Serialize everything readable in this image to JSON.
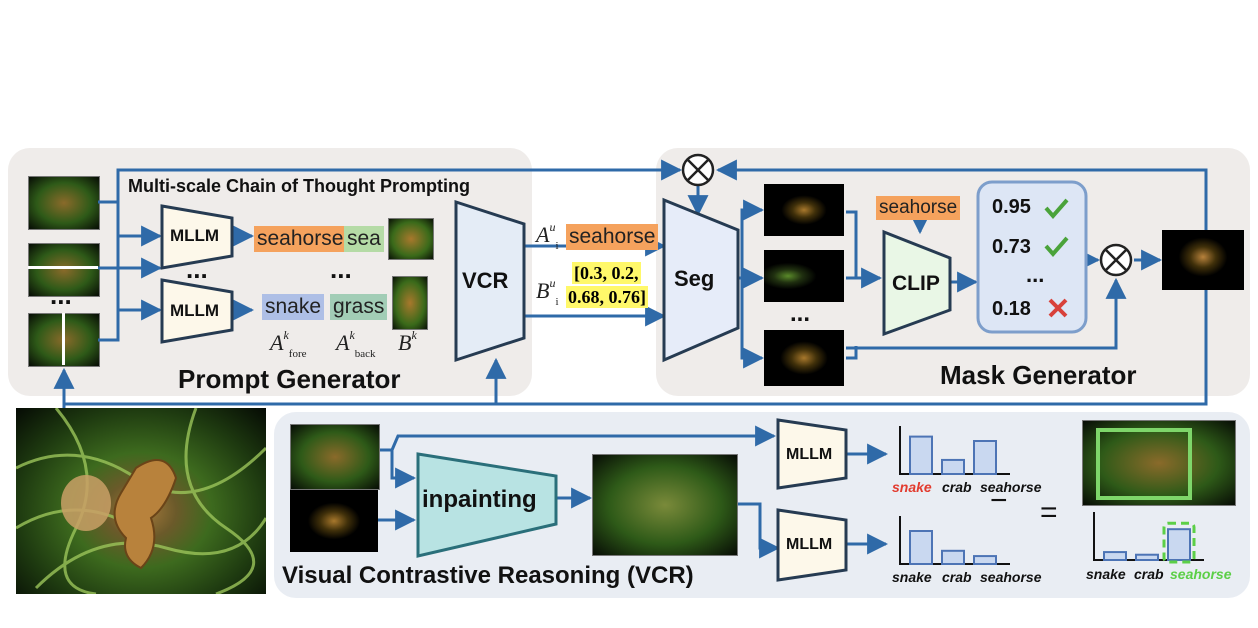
{
  "prompt_generator": {
    "title": "Prompt Generator",
    "subtitle": "Multi-scale Chain of Thought Prompting",
    "mllm_label": "MLLM",
    "ellipsis": "...",
    "vcr_label": "VCR",
    "row1_fore": "seahorse",
    "row1_back": "sea",
    "row2_fore": "snake",
    "row2_back": "grass",
    "sym_fore": "A",
    "sym_fore_sup": "k",
    "sym_fore_sub": "fore",
    "sym_back": "A",
    "sym_back_sup": "k",
    "sym_back_sub": "back",
    "sym_box": "B",
    "sym_box_sup": "k"
  },
  "vcr_output": {
    "a_sym": "A",
    "a_sub": "i",
    "a_sup": "u",
    "a_value": "seahorse",
    "b_sym": "B",
    "b_sub": "i",
    "b_sup": "u",
    "b_line1": "[0.3, 0.2,",
    "b_line2": "0.68, 0.76]"
  },
  "mask_generator": {
    "title": "Mask Generator",
    "seg_label": "Seg",
    "clip_label": "CLIP",
    "clip_prompt": "seahorse",
    "ellipsis": "...",
    "scores": [
      {
        "value": "0.95",
        "mark": "check-icon"
      },
      {
        "value": "0.73",
        "mark": "check-icon"
      },
      {
        "value": "0.18",
        "mark": "cross-icon"
      }
    ]
  },
  "vcr_module": {
    "title": "Visual Contrastive Reasoning (VCR)",
    "inpainting_label": "inpainting",
    "mllm_label": "MLLM",
    "minus": "−",
    "equals": "=",
    "chart_labels": [
      "snake",
      "crab",
      "seahorse"
    ]
  },
  "colors": {
    "arrow": "#2f6aa8",
    "seahorse_tag": "#f5a25d",
    "sea_tag": "#b5dba6",
    "snake_tag": "#aebfe6",
    "grass_tag": "#a2cdb6",
    "highlight_red": "#e23b2e",
    "highlight_green": "#5ccf47"
  },
  "chart_data": [
    {
      "type": "bar",
      "categories": [
        "snake",
        "crab",
        "seahorse"
      ],
      "values": [
        0.85,
        0.32,
        0.75
      ],
      "highlight": {
        "snake": "red"
      }
    },
    {
      "type": "bar",
      "categories": [
        "snake",
        "crab",
        "seahorse"
      ],
      "values": [
        0.75,
        0.3,
        0.18
      ]
    },
    {
      "type": "bar",
      "categories": [
        "snake",
        "crab",
        "seahorse"
      ],
      "values": [
        0.18,
        0.12,
        0.7
      ],
      "highlight": {
        "seahorse": "green"
      }
    }
  ]
}
